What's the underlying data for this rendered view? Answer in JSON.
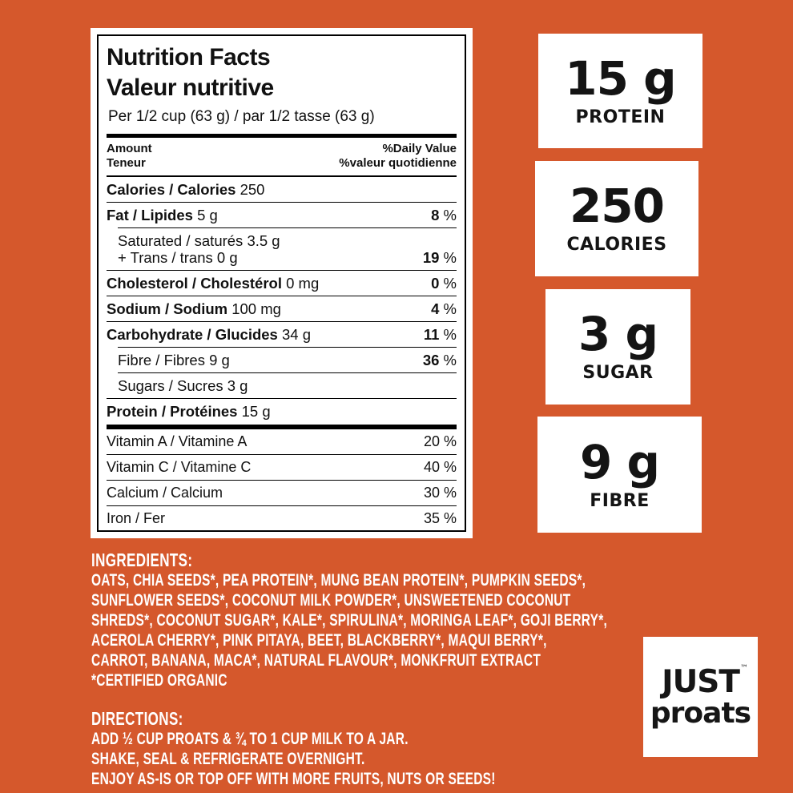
{
  "colors": {
    "background": "#D5582C",
    "panel": "#FFFFFF",
    "ink": "#111111",
    "white_text": "#FFFFFF"
  },
  "label": {
    "title_en": "Nutrition Facts",
    "title_fr": "Valeur nutritive",
    "serving": "Per 1/2 cup (63 g) / par 1/2 tasse (63 g)",
    "amount_en": "Amount",
    "amount_fr": "Teneur",
    "dv_en": "%Daily Value",
    "dv_fr": "%valeur quotidienne",
    "rows": [
      {
        "bold": "Calories / Calories",
        "rest": " 250",
        "dv_num": "",
        "dv_sym": ""
      },
      {
        "bold": "Fat / Lipides",
        "rest": " 5 g",
        "dv_num": "8",
        "dv_sym": " %"
      },
      {
        "line1": "Saturated / saturés 3.5 g",
        "line2": "+ Trans / trans 0 g",
        "dv_num": "19",
        "dv_sym": " %"
      },
      {
        "bold": "Cholesterol / Cholestérol",
        "rest": " 0 mg",
        "dv_num": "0",
        "dv_sym": " %"
      },
      {
        "bold": "Sodium / Sodium",
        "rest": " 100 mg",
        "dv_num": "4",
        "dv_sym": " %"
      },
      {
        "bold": "Carbohydrate / Glucides",
        "rest": " 34 g",
        "dv_num": "11",
        "dv_sym": " %"
      },
      {
        "bold": "",
        "rest": "Fibre / Fibres 9 g",
        "dv_num": "36",
        "dv_sym": " %"
      },
      {
        "bold": "",
        "rest": "Sugars / Sucres 3 g",
        "dv_num": "",
        "dv_sym": ""
      },
      {
        "bold": "Protein / Protéines",
        "rest": " 15 g",
        "dv_num": "",
        "dv_sym": ""
      }
    ],
    "micros": [
      {
        "name": "Vitamin A / Vitamine A",
        "dv": "20 %"
      },
      {
        "name": "Vitamin C / Vitamine C",
        "dv": "40 %"
      },
      {
        "name": "Calcium / Calcium",
        "dv": "30 %"
      },
      {
        "name": "Iron / Fer",
        "dv": "35 %"
      }
    ]
  },
  "badges": [
    {
      "value": "15 g",
      "label": "PROTEIN"
    },
    {
      "value": "250",
      "label": "CALORIES"
    },
    {
      "value": "3 g",
      "label": "SUGAR"
    },
    {
      "value": "9 g",
      "label": "FIBRE"
    }
  ],
  "ingredients": {
    "title": "INGREDIENTS:",
    "lines": [
      "OATS, CHIA SEEDS*, PEA PROTEIN*, MUNG BEAN PROTEIN*, PUMPKIN SEEDS*,",
      "SUNFLOWER SEEDS*, COCONUT MILK POWDER*, UNSWEETENED COCONUT",
      "SHREDS*, COCONUT SUGAR*, KALE*, SPIRULINA*, MORINGA LEAF*, GOJI BERRY*,",
      "ACEROLA CHERRY*, PINK PITAYA, BEET, BLACKBERRY*, MAQUI BERRY*,",
      "CARROT, BANANA, MACA*, NATURAL FLAVOUR*, MONKFRUIT EXTRACT",
      "*CERTIFIED ORGANIC"
    ]
  },
  "directions": {
    "title": "DIRECTIONS:",
    "lines": [
      "ADD ½ CUP PROATS & ¾ TO 1 CUP MILK TO A JAR.",
      "SHAKE, SEAL & REFRIGERATE OVERNIGHT.",
      "ENJOY AS-IS OR TOP OFF WITH MORE FRUITS, NUTS OR SEEDS!"
    ]
  },
  "logo": {
    "brand_top": "JUST",
    "tm": "™",
    "brand_bottom": "proats"
  }
}
